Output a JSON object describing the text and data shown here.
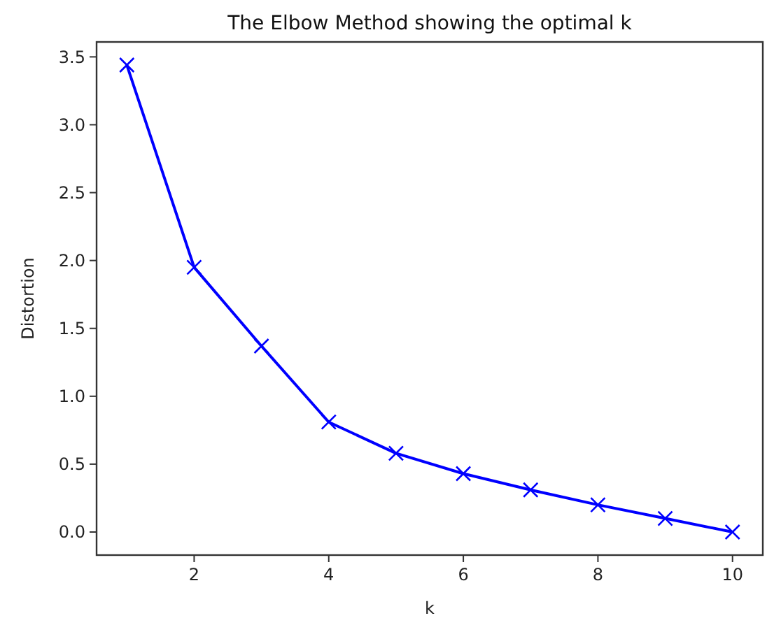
{
  "chart_data": {
    "type": "line",
    "title": "The Elbow Method showing the optimal k",
    "xlabel": "k",
    "ylabel": "Distortion",
    "x": [
      1,
      2,
      3,
      4,
      5,
      6,
      7,
      8,
      9,
      10
    ],
    "series": [
      {
        "color": "#0000ff",
        "values": [
          3.44,
          1.95,
          1.37,
          0.81,
          0.58,
          0.43,
          0.31,
          0.2,
          0.1,
          0.0
        ]
      }
    ],
    "xlim": [
      0.55,
      10.45
    ],
    "xticks": [
      2,
      4,
      6,
      8,
      10
    ],
    "ylim": [
      -0.17,
      3.61
    ],
    "yticks": [
      {
        "value": 0,
        "label": "0.0"
      },
      {
        "value": 0.5,
        "label": "0.5"
      },
      {
        "value": 1,
        "label": "1.0"
      },
      {
        "value": 1.5,
        "label": "1.5"
      },
      {
        "value": 2,
        "label": "2.0"
      },
      {
        "value": 2.5,
        "label": "2.5"
      },
      {
        "value": 3,
        "label": "3.0"
      },
      {
        "value": 3.5,
        "label": "3.5"
      }
    ],
    "marker": "cross",
    "line_style": "solid",
    "grid": false
  }
}
